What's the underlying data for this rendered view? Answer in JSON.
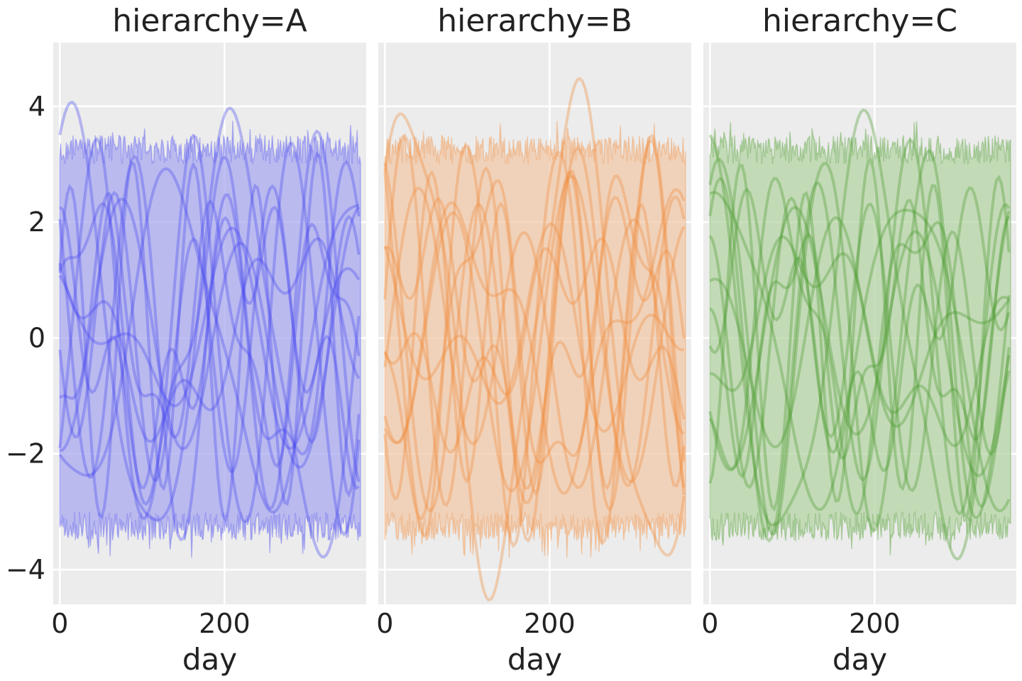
{
  "chart_data": {
    "type": "line",
    "xlabel": "day",
    "ylabel": "",
    "xlim": [
      -8,
      372
    ],
    "ylim": [
      -4.6,
      5.1
    ],
    "x_ticks": [
      0,
      200
    ],
    "x_tick_labels": [
      "0",
      "200"
    ],
    "y_ticks": [
      -4,
      -2,
      0,
      2,
      4
    ],
    "y_tick_labels": [
      "−4",
      "−2",
      "0",
      "2",
      "4"
    ],
    "grid": true,
    "legend": "none",
    "band": {
      "x_start": 0,
      "x_end": 365,
      "upper_mean": 3.25,
      "lower_mean": -3.25,
      "jitter": 0.25
    },
    "curve_model": "y = a1*sin(2*pi*x/p1 + ph1) + a2*sin(2*pi*x/p2 + ph2)",
    "panels": [
      {
        "title": "hierarchy=A",
        "color": "#4b4bf0",
        "band_color": "#a9a9f0",
        "curves": [
          {
            "a1": 3.6,
            "p1": 200,
            "ph1": 1.2,
            "a2": 0.5,
            "p2": 90,
            "ph2": 0.3
          },
          {
            "a1": 3.0,
            "p1": 110,
            "ph1": 2.6,
            "a2": 0.6,
            "p2": 300,
            "ph2": 1.0
          },
          {
            "a1": 2.4,
            "p1": 160,
            "ph1": 0.2,
            "a2": 0.8,
            "p2": 70,
            "ph2": 2.2
          },
          {
            "a1": 2.7,
            "p1": 230,
            "ph1": 4.1,
            "a2": 0.4,
            "p2": 100,
            "ph2": 0.5
          },
          {
            "a1": 1.8,
            "p1": 130,
            "ph1": 5.0,
            "a2": 0.7,
            "p2": 60,
            "ph2": 1.7
          },
          {
            "a1": 1.4,
            "p1": 300,
            "ph1": 1.9,
            "a2": 0.6,
            "p2": 85,
            "ph2": 3.2
          },
          {
            "a1": 2.2,
            "p1": 95,
            "ph1": 3.4,
            "a2": 0.5,
            "p2": 250,
            "ph2": 0.8
          },
          {
            "a1": 1.1,
            "p1": 180,
            "ph1": 0.9,
            "a2": 0.9,
            "p2": 120,
            "ph2": 2.9
          },
          {
            "a1": 2.9,
            "p1": 75,
            "ph1": 0.5,
            "a2": 0.3,
            "p2": 200,
            "ph2": 4.0
          },
          {
            "a1": 1.6,
            "p1": 260,
            "ph1": 2.2,
            "a2": 1.0,
            "p2": 65,
            "ph2": 1.3
          },
          {
            "a1": 2.0,
            "p1": 145,
            "ph1": 4.6,
            "a2": 0.4,
            "p2": 330,
            "ph2": 0.1
          },
          {
            "a1": 3.3,
            "p1": 120,
            "ph1": 5.6,
            "a2": 0.2,
            "p2": 55,
            "ph2": 2.0
          }
        ]
      },
      {
        "title": "hierarchy=B",
        "color": "#f28c3c",
        "band_color": "#f2c9aa",
        "curves": [
          {
            "a1": 4.0,
            "p1": 200,
            "ph1": 0.6,
            "a2": 0.6,
            "p2": 80,
            "ph2": 1.4
          },
          {
            "a1": 2.8,
            "p1": 120,
            "ph1": 1.9,
            "a2": 0.5,
            "p2": 280,
            "ph2": 2.3
          },
          {
            "a1": 2.5,
            "p1": 170,
            "ph1": 3.3,
            "a2": 0.7,
            "p2": 65,
            "ph2": 0.2
          },
          {
            "a1": 1.9,
            "p1": 240,
            "ph1": 5.2,
            "a2": 0.8,
            "p2": 95,
            "ph2": 3.0
          },
          {
            "a1": 3.1,
            "p1": 100,
            "ph1": 0.1,
            "a2": 0.4,
            "p2": 310,
            "ph2": 1.1
          },
          {
            "a1": 1.3,
            "p1": 290,
            "ph1": 2.8,
            "a2": 0.7,
            "p2": 75,
            "ph2": 4.4
          },
          {
            "a1": 2.3,
            "p1": 140,
            "ph1": 4.0,
            "a2": 0.5,
            "p2": 210,
            "ph2": 0.9
          },
          {
            "a1": 1.0,
            "p1": 190,
            "ph1": 1.4,
            "a2": 1.0,
            "p2": 110,
            "ph2": 2.5
          },
          {
            "a1": 2.6,
            "p1": 85,
            "ph1": 3.7,
            "a2": 0.3,
            "p2": 160,
            "ph2": 5.1
          },
          {
            "a1": 1.7,
            "p1": 250,
            "ph1": 0.4,
            "a2": 0.9,
            "p2": 70,
            "ph2": 1.8
          },
          {
            "a1": 2.1,
            "p1": 130,
            "ph1": 5.9,
            "a2": 0.5,
            "p2": 340,
            "ph2": 0.6
          },
          {
            "a1": 3.4,
            "p1": 110,
            "ph1": 2.1,
            "a2": 0.2,
            "p2": 50,
            "ph2": 3.6
          }
        ]
      },
      {
        "title": "hierarchy=C",
        "color": "#4a9a2e",
        "band_color": "#b5d4a6",
        "curves": [
          {
            "a1": 3.5,
            "p1": 205,
            "ph1": 2.0,
            "a2": 0.5,
            "p2": 85,
            "ph2": 0.7
          },
          {
            "a1": 2.9,
            "p1": 115,
            "ph1": 0.8,
            "a2": 0.6,
            "p2": 290,
            "ph2": 3.1
          },
          {
            "a1": 2.3,
            "p1": 165,
            "ph1": 4.4,
            "a2": 0.8,
            "p2": 72,
            "ph2": 1.5
          },
          {
            "a1": 2.6,
            "p1": 225,
            "ph1": 1.1,
            "a2": 0.4,
            "p2": 105,
            "ph2": 2.7
          },
          {
            "a1": 1.7,
            "p1": 135,
            "ph1": 3.0,
            "a2": 0.7,
            "p2": 58,
            "ph2": 0.4
          },
          {
            "a1": 1.5,
            "p1": 305,
            "ph1": 5.4,
            "a2": 0.6,
            "p2": 88,
            "ph2": 2.0
          },
          {
            "a1": 2.2,
            "p1": 98,
            "ph1": 1.6,
            "a2": 0.5,
            "p2": 245,
            "ph2": 4.2
          },
          {
            "a1": 1.2,
            "p1": 185,
            "ph1": 2.5,
            "a2": 0.9,
            "p2": 125,
            "ph2": 0.3
          },
          {
            "a1": 2.8,
            "p1": 78,
            "ph1": 4.8,
            "a2": 0.3,
            "p2": 195,
            "ph2": 1.2
          },
          {
            "a1": 1.6,
            "p1": 265,
            "ph1": 0.3,
            "a2": 1.0,
            "p2": 68,
            "ph2": 3.8
          },
          {
            "a1": 2.0,
            "p1": 150,
            "ph1": 3.6,
            "a2": 0.4,
            "p2": 325,
            "ph2": 5.0
          },
          {
            "a1": 3.2,
            "p1": 125,
            "ph1": 0.9,
            "a2": 0.2,
            "p2": 57,
            "ph2": 2.4
          }
        ]
      }
    ]
  }
}
